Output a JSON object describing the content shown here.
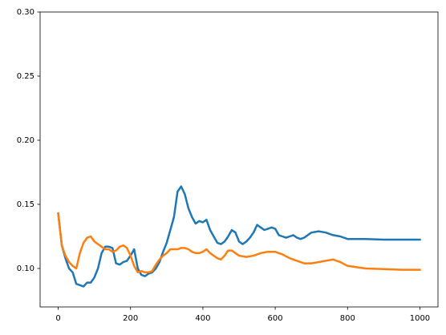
{
  "chart_data": {
    "type": "line",
    "x": [
      0,
      10,
      20,
      30,
      40,
      50,
      60,
      70,
      80,
      90,
      100,
      110,
      120,
      130,
      140,
      150,
      160,
      170,
      180,
      190,
      200,
      210,
      220,
      230,
      240,
      250,
      260,
      270,
      280,
      290,
      300,
      310,
      320,
      330,
      340,
      350,
      360,
      370,
      380,
      390,
      400,
      410,
      420,
      430,
      440,
      450,
      460,
      470,
      480,
      490,
      500,
      510,
      520,
      530,
      540,
      550,
      560,
      570,
      580,
      590,
      600,
      610,
      620,
      630,
      640,
      650,
      660,
      670,
      680,
      690,
      700,
      720,
      740,
      760,
      780,
      800,
      850,
      900,
      950,
      1000
    ],
    "series": [
      {
        "color": "#1f77b4",
        "values": [
          0.143,
          0.118,
          0.108,
          0.1,
          0.097,
          0.088,
          0.087,
          0.086,
          0.089,
          0.089,
          0.093,
          0.1,
          0.112,
          0.117,
          0.117,
          0.116,
          0.104,
          0.103,
          0.105,
          0.106,
          0.11,
          0.115,
          0.1,
          0.095,
          0.094,
          0.096,
          0.097,
          0.1,
          0.105,
          0.113,
          0.12,
          0.13,
          0.14,
          0.16,
          0.164,
          0.158,
          0.147,
          0.14,
          0.135,
          0.137,
          0.136,
          0.138,
          0.13,
          0.125,
          0.12,
          0.119,
          0.121,
          0.125,
          0.13,
          0.128,
          0.121,
          0.119,
          0.121,
          0.124,
          0.128,
          0.134,
          0.132,
          0.13,
          0.131,
          0.132,
          0.131,
          0.126,
          0.125,
          0.124,
          0.125,
          0.126,
          0.124,
          0.123,
          0.124,
          0.126,
          0.128,
          0.129,
          0.128,
          0.126,
          0.125,
          0.123,
          0.123,
          0.1225,
          0.1225,
          0.1225
        ]
      },
      {
        "color": "#ff7f0e",
        "values": [
          0.143,
          0.118,
          0.11,
          0.105,
          0.102,
          0.1,
          0.112,
          0.12,
          0.124,
          0.125,
          0.121,
          0.119,
          0.117,
          0.115,
          0.115,
          0.113,
          0.114,
          0.117,
          0.118,
          0.116,
          0.11,
          0.102,
          0.097,
          0.098,
          0.097,
          0.097,
          0.098,
          0.103,
          0.107,
          0.11,
          0.112,
          0.115,
          0.115,
          0.115,
          0.116,
          0.116,
          0.115,
          0.113,
          0.112,
          0.112,
          0.113,
          0.115,
          0.112,
          0.11,
          0.108,
          0.107,
          0.11,
          0.114,
          0.114,
          0.112,
          0.11,
          0.1095,
          0.109,
          0.1095,
          0.11,
          0.111,
          0.112,
          0.1125,
          0.113,
          0.113,
          0.113,
          0.112,
          0.111,
          0.1095,
          0.108,
          0.107,
          0.106,
          0.105,
          0.104,
          0.104,
          0.104,
          0.105,
          0.106,
          0.107,
          0.105,
          0.102,
          0.1,
          0.0995,
          0.099,
          0.099
        ]
      }
    ],
    "xlim": [
      -50,
      1050
    ],
    "xticks": [
      0,
      200,
      400,
      600,
      800,
      1000
    ],
    "ylim": [
      0.07,
      0.3
    ],
    "yticks": [
      {
        "value": 0.1,
        "label": "0.10"
      },
      0.15,
      {
        "value": 0.2,
        "label": "0.20"
      },
      0.25,
      {
        "value": 0.3,
        "label": "0.30"
      }
    ],
    "grid": false
  }
}
